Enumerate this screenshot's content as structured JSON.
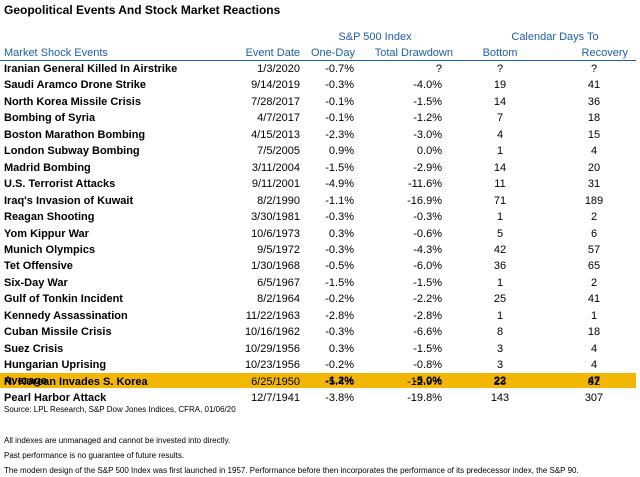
{
  "title": "Geopolitical Events And Stock Market Reactions",
  "header_groups": [
    "S&P 500 Index",
    "Calendar Days To"
  ],
  "columns": [
    "Market Shock Events",
    "Event Date",
    "One-Day",
    "Total Drawdown",
    "Bottom",
    "Recovery"
  ],
  "rows": [
    [
      "Iranian General Killed In Airstrike",
      "1/3/2020",
      "-0.7%",
      "?",
      "?",
      "?"
    ],
    [
      "Saudi Aramco Drone Strike",
      "9/14/2019",
      "-0.3%",
      "-4.0%",
      "19",
      "41"
    ],
    [
      "North Korea Missile Crisis",
      "7/28/2017",
      "-0.1%",
      "-1.5%",
      "14",
      "36"
    ],
    [
      "Bombing of Syria",
      "4/7/2017",
      "-0.1%",
      "-1.2%",
      "7",
      "18"
    ],
    [
      "Boston Marathon Bombing",
      "4/15/2013",
      "-2.3%",
      "-3.0%",
      "4",
      "15"
    ],
    [
      "London Subway Bombing",
      "7/5/2005",
      "0.9%",
      "0.0%",
      "1",
      "4"
    ],
    [
      "Madrid Bombing",
      "3/11/2004",
      "-1.5%",
      "-2.9%",
      "14",
      "20"
    ],
    [
      "U.S. Terrorist Attacks",
      "9/11/2001",
      "-4.9%",
      "-11.6%",
      "11",
      "31"
    ],
    [
      "Iraq's Invasion of Kuwait",
      "8/2/1990",
      "-1.1%",
      "-16.9%",
      "71",
      "189"
    ],
    [
      "Reagan Shooting",
      "3/30/1981",
      "-0.3%",
      "-0.3%",
      "1",
      "2"
    ],
    [
      "Yom Kippur War",
      "10/6/1973",
      "0.3%",
      "-0.6%",
      "5",
      "6"
    ],
    [
      "Munich Olympics",
      "9/5/1972",
      "-0.3%",
      "-4.3%",
      "42",
      "57"
    ],
    [
      "Tet Offensive",
      "1/30/1968",
      "-0.5%",
      "-6.0%",
      "36",
      "65"
    ],
    [
      "Six-Day War",
      "6/5/1967",
      "-1.5%",
      "-1.5%",
      "1",
      "2"
    ],
    [
      "Gulf of Tonkin Incident",
      "8/2/1964",
      "-0.2%",
      "-2.2%",
      "25",
      "41"
    ],
    [
      "Kennedy Assassination",
      "11/22/1963",
      "-2.8%",
      "-2.8%",
      "1",
      "1"
    ],
    [
      "Cuban Missile Crisis",
      "10/16/1962",
      "-0.3%",
      "-6.6%",
      "8",
      "18"
    ],
    [
      "Suez Crisis",
      "10/29/1956",
      "0.3%",
      "-1.5%",
      "3",
      "4"
    ],
    [
      "Hungarian Uprising",
      "10/23/1956",
      "-0.2%",
      "-0.8%",
      "3",
      "4"
    ],
    [
      "N. Korean Invades S. Korea",
      "6/25/1950",
      "-5.4%",
      "-12.9%",
      "23",
      "82"
    ],
    [
      "Pearl Harbor Attack",
      "12/7/1941",
      "-3.8%",
      "-19.8%",
      "143",
      "307"
    ]
  ],
  "average": {
    "label": "Average",
    "values": [
      "-1.2%",
      "-5.0%",
      "22",
      "47"
    ]
  },
  "source": "Source: LPL Research, S&P Dow Jones Indices, CFRA, 01/06/20",
  "notes": [
    "All indexes are unmanaged and cannot be invested into directly.",
    "Past performance is no guarantee of future results.",
    "The modern design of the S&P 500 Index was first launched in 1957. Performance before then incorporates the performance of its predecessor index, the S&P 90."
  ]
}
